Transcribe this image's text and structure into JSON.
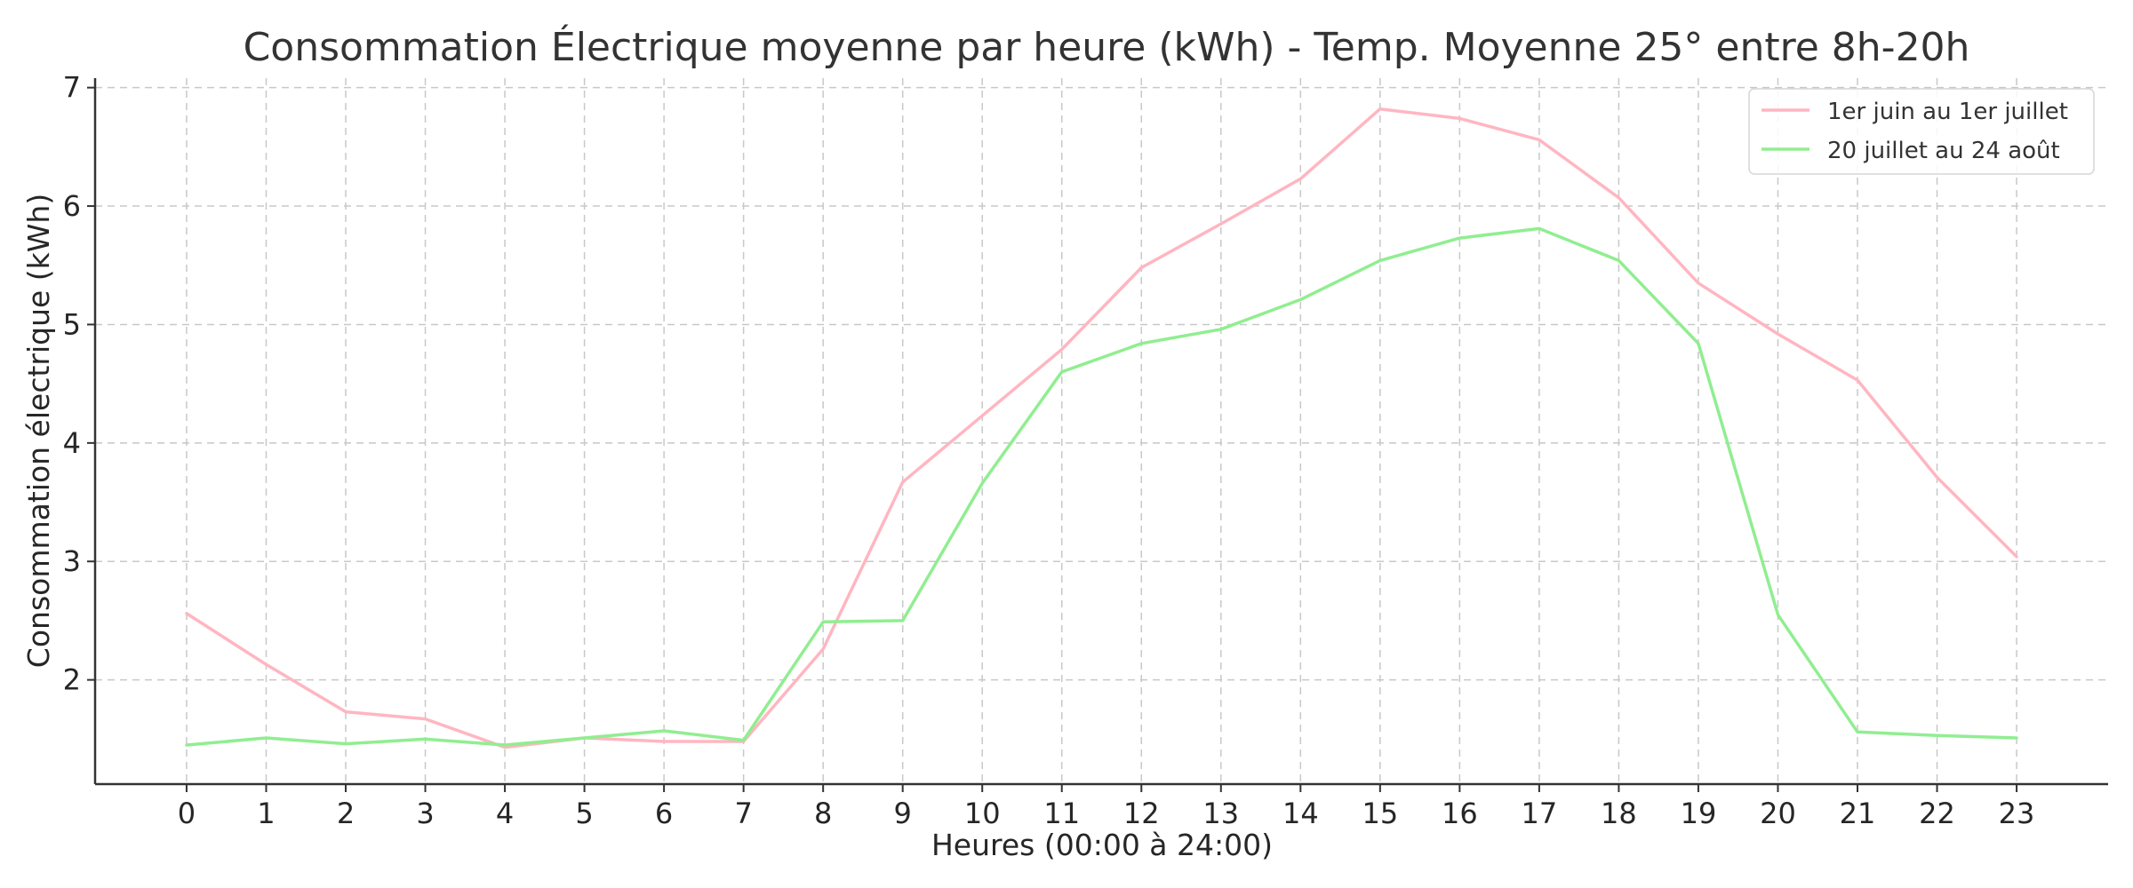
{
  "chart_data": {
    "type": "line",
    "title": "Consommation Électrique moyenne par heure (kWh) - Temp. Moyenne 25° entre 8h-20h",
    "xlabel": "Heures (00:00 à 24:00)",
    "ylabel": "Consommation électrique (kWh)",
    "x": [
      0,
      1,
      2,
      3,
      4,
      5,
      6,
      7,
      8,
      9,
      10,
      11,
      12,
      13,
      14,
      15,
      16,
      17,
      18,
      19,
      20,
      21,
      22,
      23
    ],
    "xticks": [
      "0",
      "1",
      "2",
      "3",
      "4",
      "5",
      "6",
      "7",
      "8",
      "9",
      "10",
      "11",
      "12",
      "13",
      "14",
      "15",
      "16",
      "17",
      "18",
      "19",
      "20",
      "21",
      "22",
      "23"
    ],
    "xlim": [
      -1.15,
      24.15
    ],
    "yticks": [
      2,
      3,
      4,
      5,
      6,
      7
    ],
    "ylim": [
      1.12,
      7.08
    ],
    "grid": true,
    "legend_position": "top-right",
    "series": [
      {
        "name": "1er juin au 1er juillet",
        "color": "#ffb6c1",
        "values": [
          2.56,
          2.13,
          1.73,
          1.67,
          1.43,
          1.51,
          1.48,
          1.48,
          2.26,
          3.67,
          4.23,
          4.79,
          5.48,
          5.85,
          6.23,
          6.82,
          6.74,
          6.56,
          6.07,
          5.35,
          4.92,
          4.53,
          3.71,
          3.04
        ]
      },
      {
        "name": "20 juillet au 24 août",
        "color": "#90ee90",
        "values": [
          1.45,
          1.51,
          1.46,
          1.5,
          1.45,
          1.51,
          1.57,
          1.49,
          2.49,
          2.5,
          3.66,
          4.6,
          4.84,
          4.96,
          5.21,
          5.54,
          5.73,
          5.81,
          5.54,
          4.84,
          2.55,
          1.56,
          1.53,
          1.51
        ]
      }
    ]
  }
}
